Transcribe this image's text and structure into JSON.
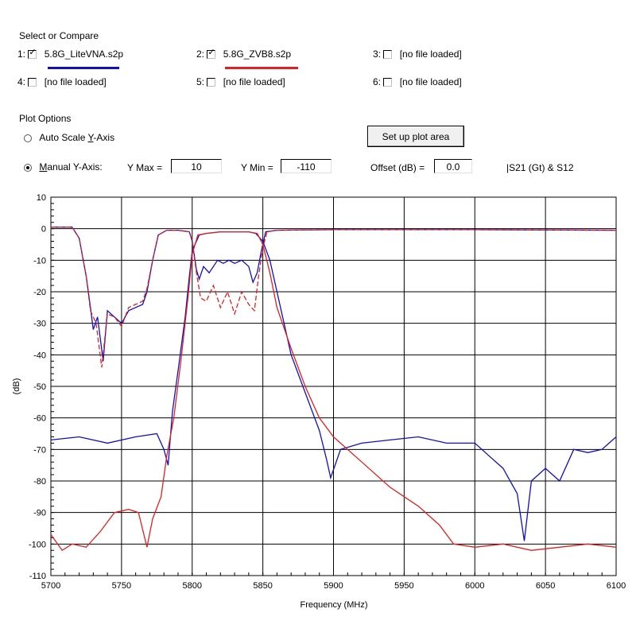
{
  "header": {
    "select_title": "Select or Compare"
  },
  "files": [
    {
      "slot": "1:",
      "checked": true,
      "name": "5.8G_LiteVNA.s2p",
      "color": "#1010c0"
    },
    {
      "slot": "2:",
      "checked": true,
      "name": "5.8G_ZVB8.s2p",
      "color": "#e02020"
    },
    {
      "slot": "3:",
      "checked": false,
      "name": "[no file loaded]"
    },
    {
      "slot": "4:",
      "checked": false,
      "name": "[no file loaded]"
    },
    {
      "slot": "5:",
      "checked": false,
      "name": "[no file loaded]"
    },
    {
      "slot": "6:",
      "checked": false,
      "name": "[no file loaded]"
    }
  ],
  "plot_options": {
    "title": "Plot Options",
    "auto_scale_prefix": "Auto Scale ",
    "auto_scale_key": "Y",
    "auto_scale_suffix": "-Axis",
    "manual_key": "M",
    "manual_suffix": "anual Y-Axis:",
    "ymax_label": "Y Max =",
    "ymax_value": "10",
    "ymin_label": "Y Min =",
    "ymin_value": "-110",
    "offset_label": "Offset (dB) =",
    "offset_value": "0.0",
    "setup_button": "Set up plot area",
    "param_label": "|S21 (Gt) & S12"
  },
  "chart_data": {
    "type": "line",
    "xlabel": "Frequency (MHz)",
    "ylabel": "(dB)",
    "xlim": [
      5700,
      6100
    ],
    "ylim": [
      -110,
      10
    ],
    "x_ticks": [
      5700,
      5750,
      5800,
      5850,
      5900,
      5950,
      6000,
      6050,
      6100
    ],
    "y_ticks": [
      10,
      0,
      -10,
      -20,
      -30,
      -40,
      -50,
      -60,
      -70,
      -80,
      -90,
      -100,
      -110
    ],
    "grid": true,
    "series": [
      {
        "name": "5.8G_LiteVNA.s2p",
        "kind": "S21",
        "color": "#1010c0",
        "points": [
          [
            5700,
            -67
          ],
          [
            5720,
            -66
          ],
          [
            5740,
            -68
          ],
          [
            5760,
            -66
          ],
          [
            5775,
            -65
          ],
          [
            5780,
            -70
          ],
          [
            5783,
            -75
          ],
          [
            5786,
            -58
          ],
          [
            5790,
            -45
          ],
          [
            5795,
            -28
          ],
          [
            5798,
            -15
          ],
          [
            5800,
            -7
          ],
          [
            5805,
            -2
          ],
          [
            5810,
            -1.5
          ],
          [
            5820,
            -1
          ],
          [
            5840,
            -1
          ],
          [
            5845,
            -1.5
          ],
          [
            5850,
            -4
          ],
          [
            5855,
            -10
          ],
          [
            5860,
            -20
          ],
          [
            5865,
            -30
          ],
          [
            5870,
            -40
          ],
          [
            5880,
            -52
          ],
          [
            5890,
            -64
          ],
          [
            5895,
            -73
          ],
          [
            5898,
            -79
          ],
          [
            5905,
            -70
          ],
          [
            5920,
            -68
          ],
          [
            5940,
            -67
          ],
          [
            5960,
            -66
          ],
          [
            5980,
            -68
          ],
          [
            6000,
            -68
          ],
          [
            6010,
            -72
          ],
          [
            6020,
            -76
          ],
          [
            6030,
            -84
          ],
          [
            6035,
            -99
          ],
          [
            6040,
            -80
          ],
          [
            6050,
            -76
          ],
          [
            6060,
            -80
          ],
          [
            6070,
            -70
          ],
          [
            6080,
            -71
          ],
          [
            6090,
            -70
          ],
          [
            6100,
            -66
          ]
        ]
      },
      {
        "name": "5.8G_LiteVNA.s2p",
        "kind": "S11",
        "color": "#1010c0",
        "points": [
          [
            5700,
            0.5
          ],
          [
            5715,
            0.5
          ],
          [
            5720,
            -3
          ],
          [
            5725,
            -15
          ],
          [
            5728,
            -25
          ],
          [
            5730,
            -32
          ],
          [
            5733,
            -28
          ],
          [
            5737,
            -42
          ],
          [
            5740,
            -26
          ],
          [
            5745,
            -28
          ],
          [
            5750,
            -30
          ],
          [
            5755,
            -26
          ],
          [
            5760,
            -25
          ],
          [
            5765,
            -24
          ],
          [
            5768,
            -20
          ],
          [
            5772,
            -10
          ],
          [
            5776,
            -2
          ],
          [
            5782,
            -0.5
          ],
          [
            5790,
            -0.5
          ],
          [
            5798,
            -1
          ],
          [
            5800,
            -4
          ],
          [
            5803,
            -13
          ],
          [
            5805,
            -16
          ],
          [
            5808,
            -12
          ],
          [
            5812,
            -14
          ],
          [
            5818,
            -10
          ],
          [
            5822,
            -11
          ],
          [
            5826,
            -10
          ],
          [
            5830,
            -11
          ],
          [
            5835,
            -10
          ],
          [
            5840,
            -12
          ],
          [
            5843,
            -17
          ],
          [
            5846,
            -14
          ],
          [
            5849,
            -7
          ],
          [
            5852,
            -1
          ],
          [
            5860,
            -0.5
          ],
          [
            5900,
            -0.3
          ],
          [
            6000,
            -0.3
          ],
          [
            6100,
            -0.5
          ]
        ]
      },
      {
        "name": "5.8G_ZVB8.s2p",
        "kind": "S21",
        "color": "#e02020",
        "points": [
          [
            5700,
            -97
          ],
          [
            5708,
            -102
          ],
          [
            5715,
            -100
          ],
          [
            5725,
            -101
          ],
          [
            5735,
            -96
          ],
          [
            5745,
            -90
          ],
          [
            5755,
            -89
          ],
          [
            5762,
            -90
          ],
          [
            5768,
            -101
          ],
          [
            5772,
            -92
          ],
          [
            5778,
            -85
          ],
          [
            5782,
            -72
          ],
          [
            5787,
            -60
          ],
          [
            5792,
            -42
          ],
          [
            5797,
            -22
          ],
          [
            5800,
            -8
          ],
          [
            5804,
            -2
          ],
          [
            5810,
            -1.5
          ],
          [
            5820,
            -1
          ],
          [
            5840,
            -1
          ],
          [
            5846,
            -1.5
          ],
          [
            5850,
            -5
          ],
          [
            5855,
            -14
          ],
          [
            5860,
            -25
          ],
          [
            5870,
            -38
          ],
          [
            5880,
            -50
          ],
          [
            5890,
            -60
          ],
          [
            5900,
            -66
          ],
          [
            5920,
            -74
          ],
          [
            5940,
            -82
          ],
          [
            5960,
            -88
          ],
          [
            5975,
            -94
          ],
          [
            5985,
            -100
          ],
          [
            6000,
            -101
          ],
          [
            6020,
            -100
          ],
          [
            6040,
            -102
          ],
          [
            6060,
            -101
          ],
          [
            6080,
            -100
          ],
          [
            6100,
            -101
          ]
        ]
      },
      {
        "name": "5.8G_ZVB8.s2p",
        "kind": "S11",
        "color": "#e02020",
        "points": [
          [
            5700,
            0.5
          ],
          [
            5715,
            0.5
          ],
          [
            5720,
            -3
          ],
          [
            5725,
            -15
          ],
          [
            5728,
            -26
          ],
          [
            5732,
            -30
          ],
          [
            5736,
            -44
          ],
          [
            5740,
            -27
          ],
          [
            5745,
            -28
          ],
          [
            5750,
            -31
          ],
          [
            5755,
            -25
          ],
          [
            5760,
            -24
          ],
          [
            5765,
            -23
          ],
          [
            5768,
            -19
          ],
          [
            5772,
            -10
          ],
          [
            5776,
            -2
          ],
          [
            5782,
            -0.5
          ],
          [
            5790,
            -0.5
          ],
          [
            5798,
            -1
          ],
          [
            5800,
            -4
          ],
          [
            5803,
            -14
          ],
          [
            5806,
            -22
          ],
          [
            5810,
            -23
          ],
          [
            5815,
            -18
          ],
          [
            5820,
            -25
          ],
          [
            5825,
            -20
          ],
          [
            5830,
            -27
          ],
          [
            5835,
            -20
          ],
          [
            5840,
            -24
          ],
          [
            5844,
            -26
          ],
          [
            5847,
            -15
          ],
          [
            5850,
            -6
          ],
          [
            5853,
            -1
          ],
          [
            5860,
            -0.5
          ],
          [
            5900,
            -0.3
          ],
          [
            6000,
            -0.3
          ],
          [
            6100,
            -0.5
          ]
        ]
      }
    ]
  }
}
